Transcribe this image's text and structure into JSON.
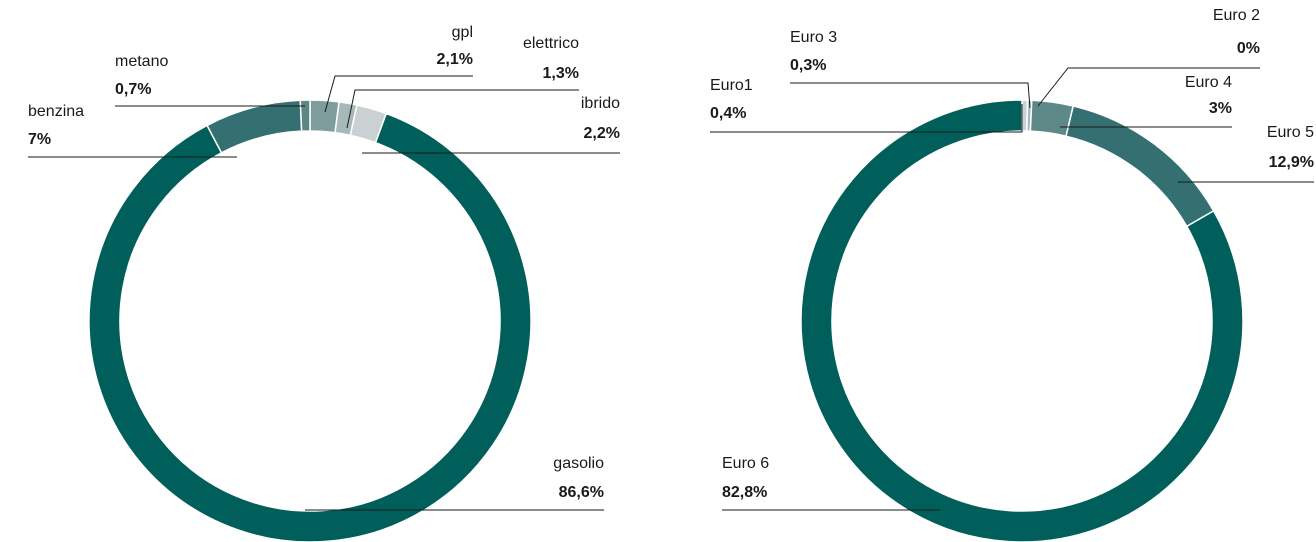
{
  "chart_data": [
    {
      "type": "pie",
      "donut": true,
      "categories": [
        "gpl",
        "elettrico",
        "ibrido",
        "gasolio",
        "benzina",
        "metano"
      ],
      "values": [
        2.1,
        1.3,
        2.2,
        86.6,
        7,
        0.7
      ],
      "value_labels": [
        "2,1%",
        "1,3%",
        "2,2%",
        "86,6%",
        "7%",
        "0,7%"
      ],
      "colors": [
        "#7f9c9c",
        "#a6b9ba",
        "#c9d1d2",
        "#005f5b",
        "#346f72",
        "#5b8786"
      ]
    },
    {
      "type": "pie",
      "donut": true,
      "categories": [
        "Euro1",
        "Euro 3",
        "Euro 2",
        "Euro 4",
        "Euro 5",
        "Euro 6"
      ],
      "values": [
        0.4,
        0.3,
        0,
        3,
        12.9,
        82.8
      ],
      "value_labels": [
        "0,4%",
        "0,3%",
        "0%",
        "3%",
        "12,9%",
        "82,8%"
      ],
      "colors": [
        "#c9d1d2",
        "#a6b9ba",
        "#8aa5a5",
        "#5e8887",
        "#346f72",
        "#005f5b"
      ]
    }
  ]
}
